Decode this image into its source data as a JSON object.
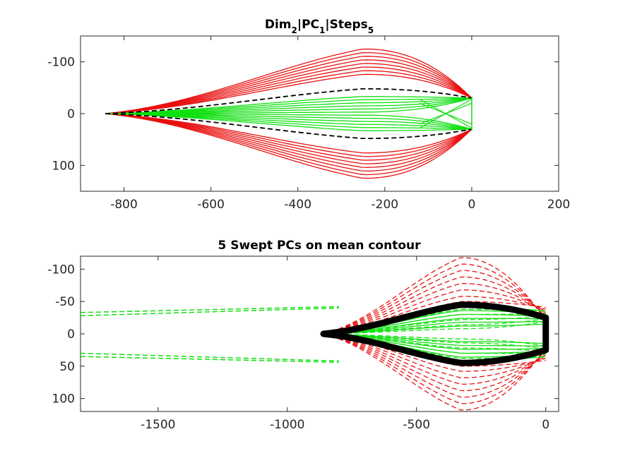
{
  "colors": {
    "red": "#e8110f",
    "green": "#0fe00f",
    "black": "#000000",
    "axis": "#262626"
  },
  "chart_data": [
    {
      "type": "line",
      "title_parts": [
        {
          "text": "Dim",
          "sub": "2"
        },
        {
          "text": "|PC",
          "sub": "1"
        },
        {
          "text": "|Steps",
          "sub": "5"
        }
      ],
      "xlim": [
        -900,
        200
      ],
      "ylim": [
        -150,
        150
      ],
      "y_reversed": true,
      "xticks": [
        -800,
        -600,
        -400,
        -200,
        0,
        200
      ],
      "yticks": [
        -100,
        0,
        100
      ],
      "xtick_labels": [
        "-800",
        "-600",
        "-400",
        "-200",
        "0",
        "200"
      ],
      "ytick_labels": [
        "-100",
        "0",
        "100"
      ],
      "grid": false,
      "series_groups": [
        {
          "color": "red",
          "style": "solid",
          "half_heights": [
            125,
            118,
            111,
            104,
            97,
            90,
            83,
            76
          ]
        },
        {
          "color": "green",
          "style": "solid",
          "half_heights": [
            33,
            27,
            21,
            15,
            9,
            3
          ]
        },
        {
          "color": "black",
          "style": "dashed",
          "half_heights": [
            48
          ]
        }
      ],
      "contour": {
        "tip_x": -843,
        "end_x": 0,
        "end_half_width": 30,
        "peak_x": -250
      }
    },
    {
      "type": "line",
      "title": "5 Swept PCs on mean contour",
      "xlim": [
        -1800,
        50
      ],
      "ylim": [
        -120,
        120
      ],
      "y_reversed": true,
      "xticks": [
        -1500,
        -1000,
        -500,
        0
      ],
      "yticks": [
        -100,
        -50,
        0,
        50,
        100
      ],
      "xtick_labels": [
        "-1500",
        "-1000",
        "-500",
        "0"
      ],
      "ytick_labels": [
        "-100",
        "-50",
        "0",
        "50",
        "100"
      ],
      "grid": false,
      "mean_contour": {
        "tip_x": -860,
        "end_x": 0,
        "half_width": 45,
        "end_half_width": 25
      },
      "series_groups": [
        {
          "color": "red",
          "style": "dashed",
          "half_heights": [
            118,
            108,
            98,
            88,
            78,
            68,
            58,
            50
          ]
        },
        {
          "color": "green",
          "style": "solid",
          "half_heights": [
            42,
            36,
            30,
            24,
            18,
            12
          ]
        },
        {
          "color": "green",
          "style": "dashed",
          "half_heights": [
            38,
            30,
            22,
            14,
            8
          ]
        }
      ],
      "long_green_lines": [
        {
          "x": [
            -1800,
            -800
          ],
          "y": [
            -33,
            -42
          ]
        },
        {
          "x": [
            -1800,
            -800
          ],
          "y": [
            -28,
            -40
          ]
        },
        {
          "x": [
            -1800,
            -800
          ],
          "y": [
            30,
            42
          ]
        },
        {
          "x": [
            -1800,
            -800
          ],
          "y": [
            35,
            44
          ]
        }
      ]
    }
  ]
}
